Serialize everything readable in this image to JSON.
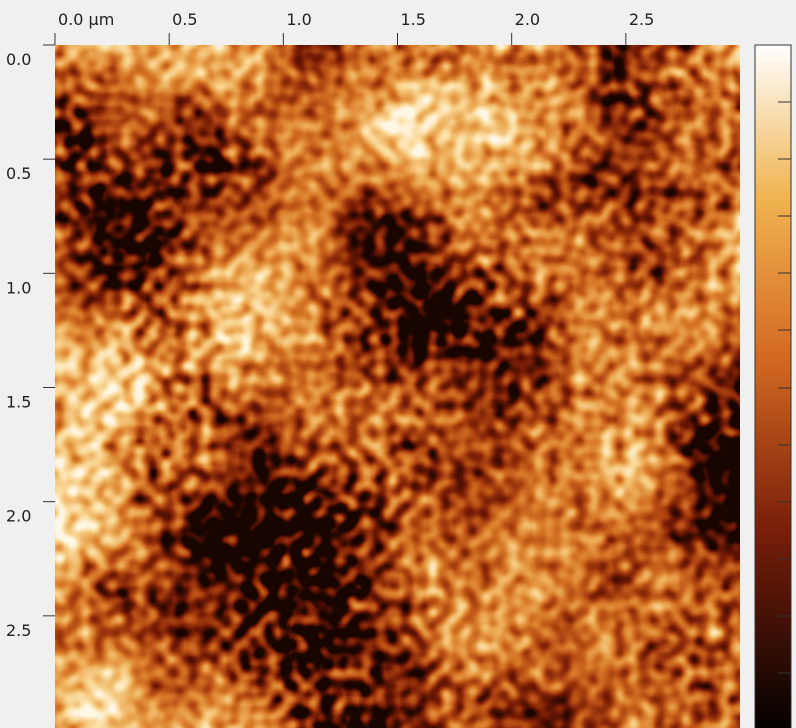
{
  "chart_data": {
    "type": "image",
    "xlim": [
      0,
      3
    ],
    "ylim": [
      0,
      3
    ],
    "xticks": [
      {
        "value": 0,
        "label": "0.0 µm"
      },
      0.5,
      {
        "value": 1,
        "label": "1.0"
      },
      1.5,
      {
        "value": 2,
        "label": "2.0"
      },
      2.5
    ],
    "yticks": [
      {
        "value": 0,
        "label": "0.0"
      },
      0.5,
      {
        "value": 1,
        "label": "1.0"
      },
      1.5,
      {
        "value": 2,
        "label": "2.0"
      },
      2.5
    ]
  }
}
